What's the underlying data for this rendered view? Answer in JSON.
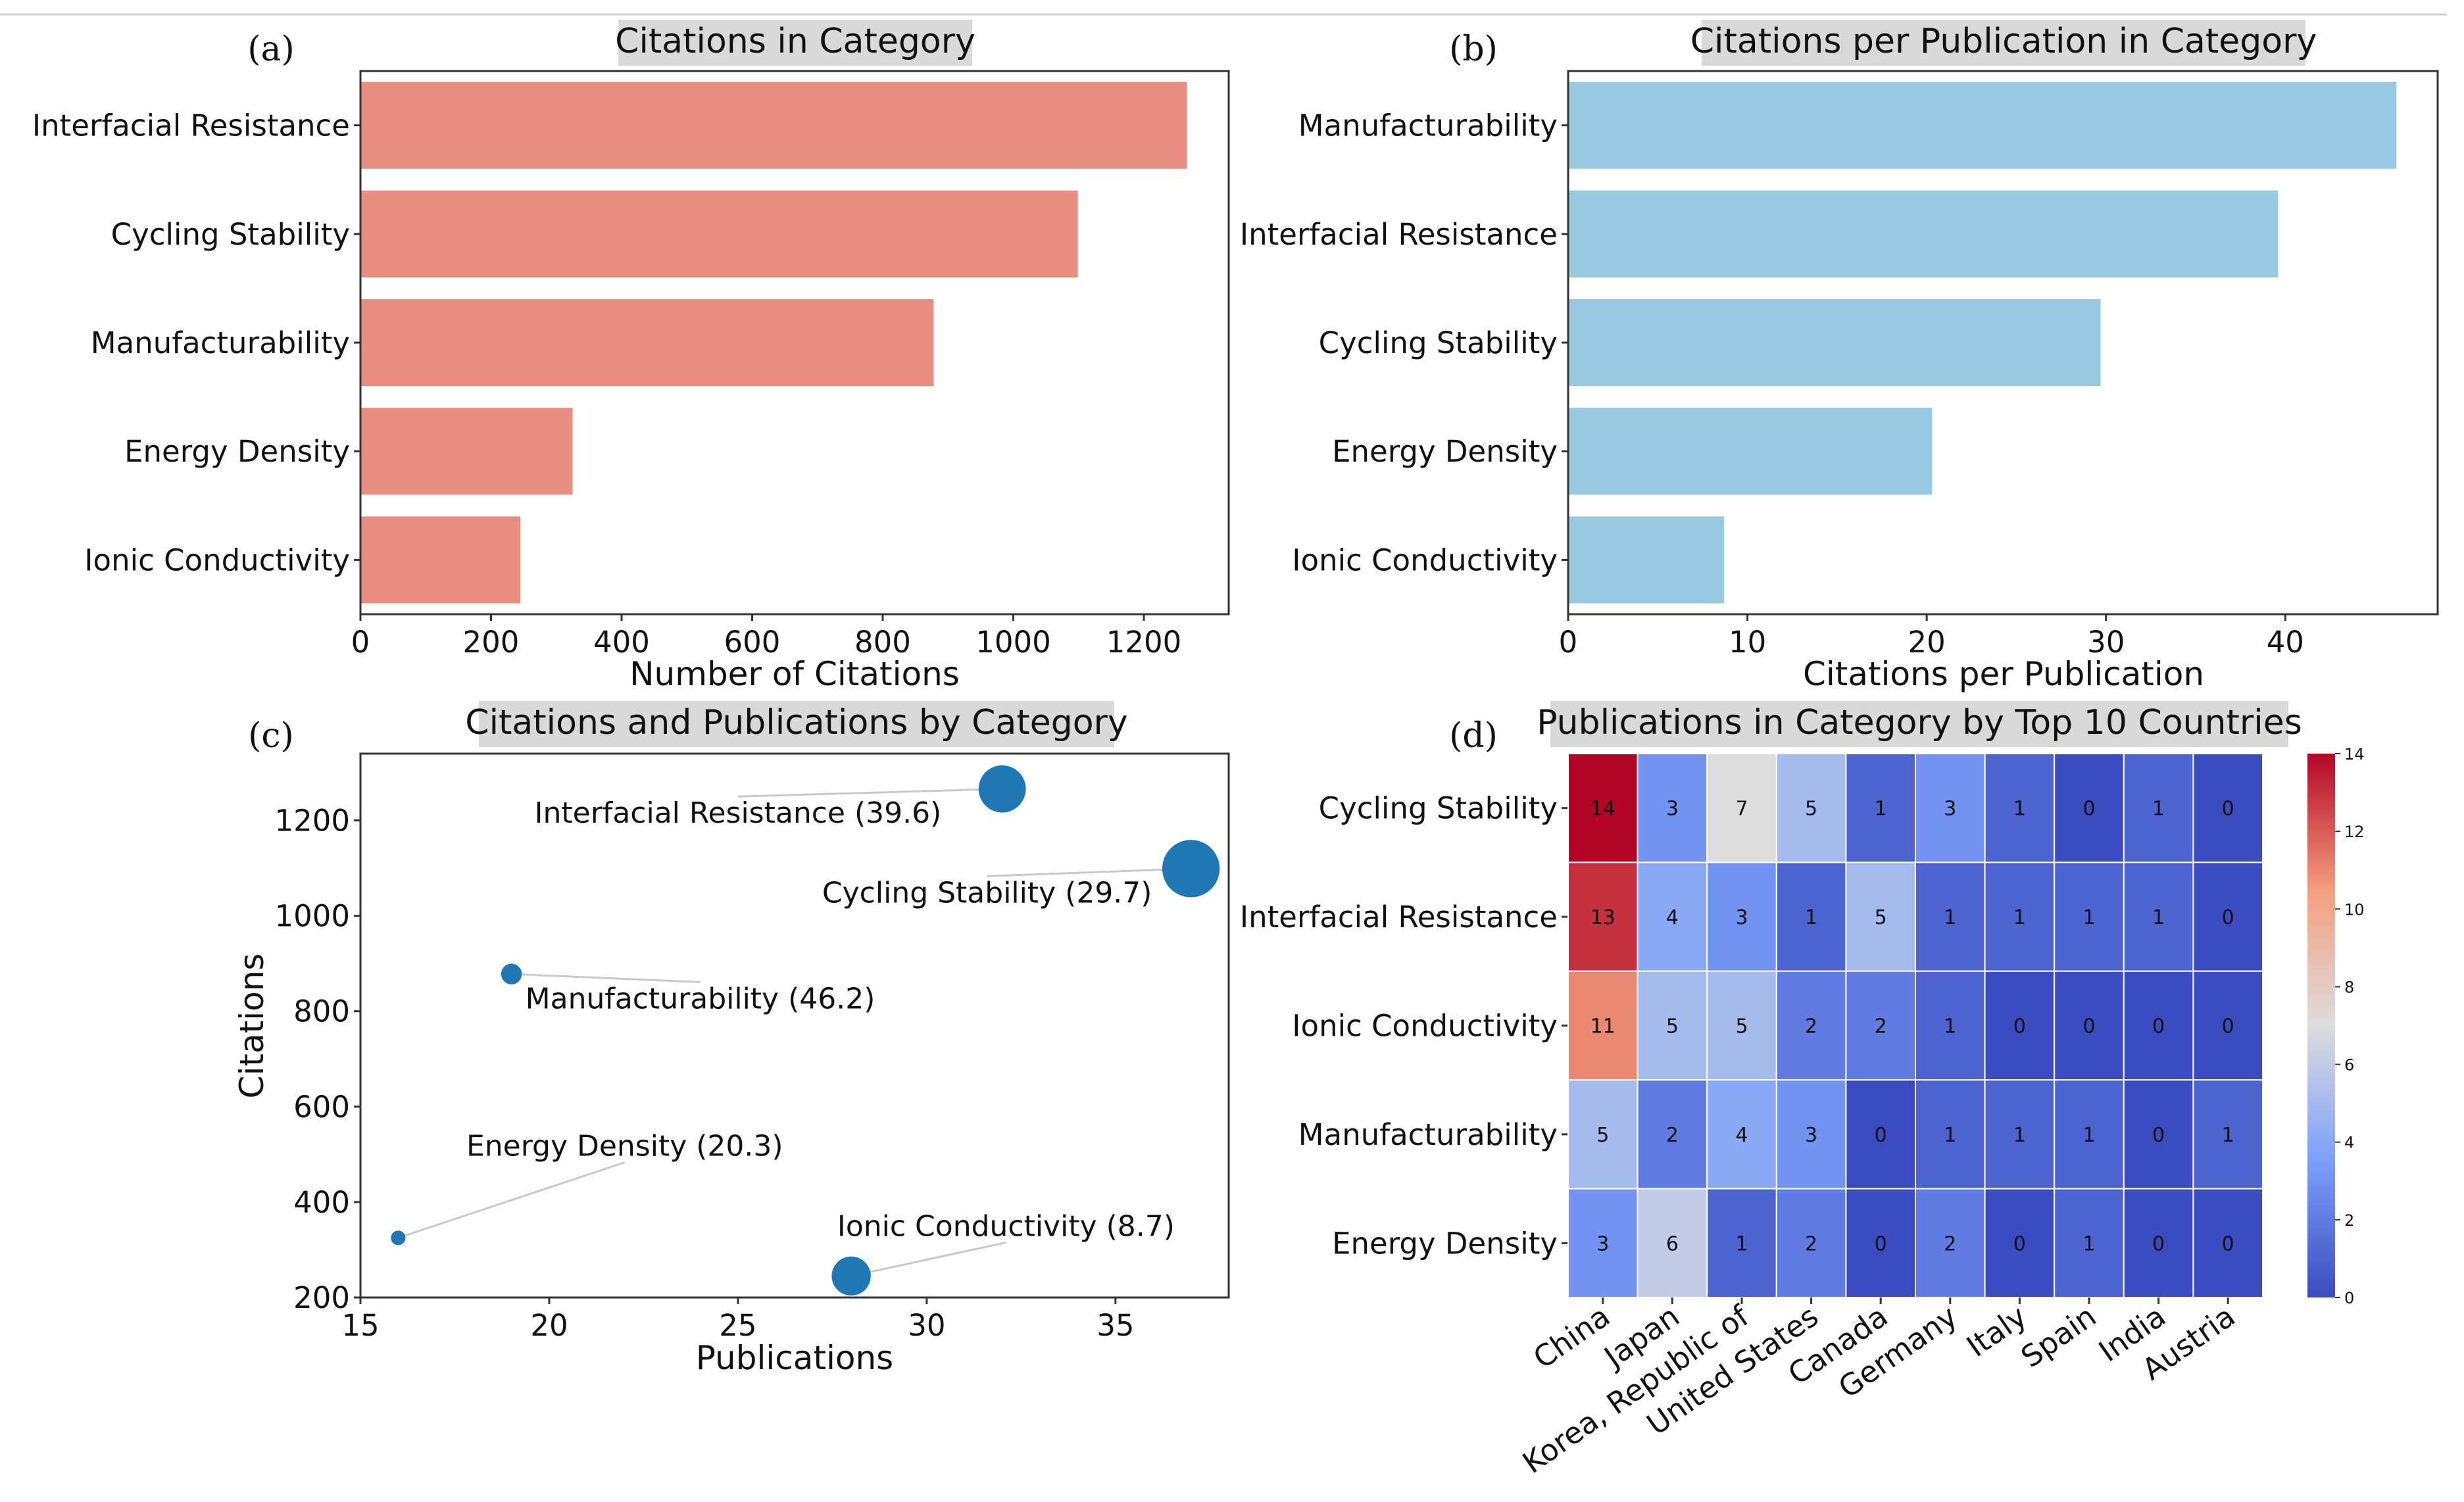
{
  "chart_data": [
    {
      "panel": "(a)",
      "type": "bar",
      "orientation": "horizontal",
      "title": "Citations in Category",
      "xlabel": "Number of Citations",
      "ylabel": "",
      "categories": [
        "Interfacial Resistance",
        "Cycling Stability",
        "Manufacturability",
        "Energy Density",
        "Ionic Conductivity"
      ],
      "values": [
        1266,
        1099,
        878,
        325,
        245
      ],
      "xlim": [
        0,
        1330
      ],
      "xticks": [
        "0",
        "200",
        "400",
        "600",
        "800",
        "1000",
        "1200"
      ],
      "color": "#e88e80"
    },
    {
      "panel": "(b)",
      "type": "bar",
      "orientation": "horizontal",
      "title": "Citations per Publication in Category",
      "xlabel": "Citations per Publication",
      "ylabel": "",
      "categories": [
        "Manufacturability",
        "Interfacial Resistance",
        "Cycling Stability",
        "Energy Density",
        "Ionic Conductivity"
      ],
      "values": [
        46.2,
        39.6,
        29.7,
        20.3,
        8.7
      ],
      "xlim": [
        0,
        48.5
      ],
      "xticks": [
        "0",
        "10",
        "20",
        "30",
        "40"
      ],
      "color": "#98c9e0"
    },
    {
      "panel": "(c)",
      "type": "scatter",
      "title": "Citations and Publications by Category",
      "xlabel": "Publications",
      "ylabel": "Citations",
      "xlim": [
        15,
        38
      ],
      "ylim": [
        200,
        1340
      ],
      "xticks": [
        "15",
        "20",
        "25",
        "30",
        "35"
      ],
      "yticks": [
        "200",
        "400",
        "600",
        "800",
        "1000",
        "1200"
      ],
      "color": "#1f77b4",
      "points": [
        {
          "name": "Interfacial Resistance",
          "x": 32,
          "y": 1266,
          "ratio": 39.6,
          "label": "Interfacial Resistance (39.6)",
          "lx": 25,
          "ly": 1195,
          "anchor": "middle"
        },
        {
          "name": "Cycling Stability",
          "x": 37,
          "y": 1099,
          "ratio": 29.7,
          "label": "Cycling Stability (29.7)",
          "lx": 31.6,
          "ly": 1028,
          "anchor": "middle"
        },
        {
          "name": "Manufacturability",
          "x": 19,
          "y": 878,
          "ratio": 46.2,
          "label": "Manufacturability (46.2)",
          "lx": 24,
          "ly": 806,
          "anchor": "middle"
        },
        {
          "name": "Energy Density",
          "x": 16,
          "y": 325,
          "ratio": 20.3,
          "label": "Energy Density (20.3)",
          "lx": 22,
          "ly": 497,
          "anchor": "middle"
        },
        {
          "name": "Ionic Conductivity",
          "x": 28,
          "y": 245,
          "ratio": 8.7,
          "label": "Ionic Conductivity (8.7)",
          "lx": 32.1,
          "ly": 329,
          "anchor": "middle"
        }
      ]
    },
    {
      "panel": "(d)",
      "type": "heatmap",
      "title": "Publications in Category by Top 10 Countries",
      "rows": [
        "Cycling Stability",
        "Interfacial Resistance",
        "Ionic Conductivity",
        "Manufacturability",
        "Energy Density"
      ],
      "columns": [
        "China",
        "Japan",
        "Korea, Republic of",
        "United States",
        "Canada",
        "Germany",
        "Italy",
        "Spain",
        "India",
        "Austria"
      ],
      "values": [
        [
          14,
          3,
          7,
          5,
          1,
          3,
          1,
          0,
          1,
          0
        ],
        [
          13,
          4,
          3,
          1,
          5,
          1,
          1,
          1,
          1,
          0
        ],
        [
          11,
          5,
          5,
          2,
          2,
          1,
          0,
          0,
          0,
          0
        ],
        [
          5,
          2,
          4,
          3,
          0,
          1,
          1,
          1,
          0,
          1
        ],
        [
          3,
          6,
          1,
          2,
          0,
          2,
          0,
          1,
          0,
          0
        ]
      ],
      "colorscale": "coolwarm",
      "vmin": 0,
      "vmax": 14,
      "colorbar_ticks": [
        "0",
        "2",
        "4",
        "6",
        "8",
        "10",
        "12",
        "14"
      ]
    }
  ]
}
